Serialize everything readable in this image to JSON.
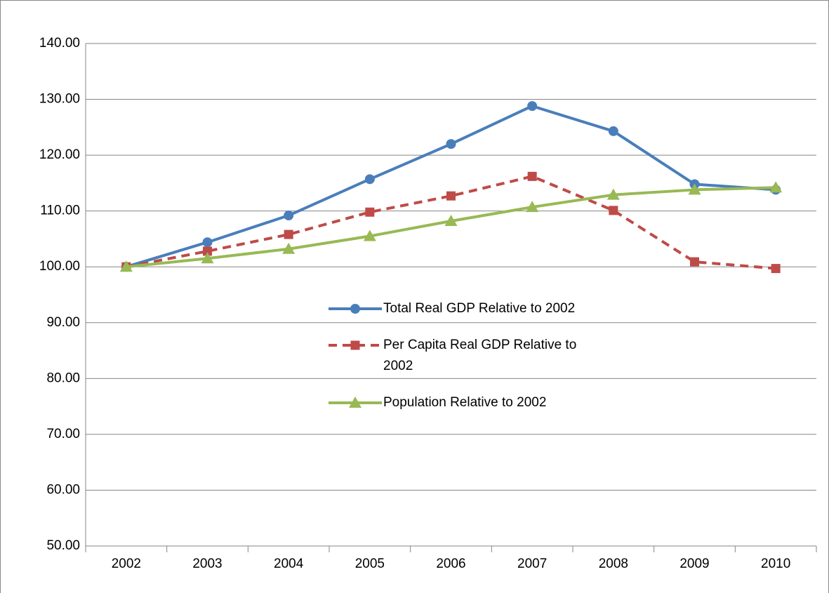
{
  "chart_data": {
    "type": "line",
    "categories": [
      "2002",
      "2003",
      "2004",
      "2005",
      "2006",
      "2007",
      "2008",
      "2009",
      "2010"
    ],
    "series": [
      {
        "name": "Total Real GDP Relative to 2002",
        "color": "#4a7ebb",
        "marker": "circle",
        "dashed": false,
        "values": [
          100,
          104.4,
          109.2,
          115.7,
          122.0,
          128.8,
          124.3,
          114.8,
          113.8
        ]
      },
      {
        "name": "Per Capita Real GDP Relative to 2002",
        "color": "#be4b48",
        "marker": "square",
        "dashed": true,
        "values": [
          100,
          102.8,
          105.8,
          109.8,
          112.7,
          116.2,
          110.1,
          100.9,
          99.7
        ]
      },
      {
        "name": "Population Relative to 2002",
        "color": "#98b954",
        "marker": "triangle",
        "dashed": false,
        "values": [
          100,
          101.5,
          103.2,
          105.5,
          108.2,
          110.7,
          112.9,
          113.8,
          114.2
        ]
      }
    ],
    "ylim": [
      50,
      140
    ],
    "yticks": [
      {
        "value": 50,
        "label": "50.00"
      },
      {
        "value": 60,
        "label": "60.00"
      },
      {
        "value": 70,
        "label": "70.00"
      },
      {
        "value": 80,
        "label": "80.00"
      },
      {
        "value": 90,
        "label": "90.00"
      },
      {
        "value": 100,
        "label": "100.00"
      },
      {
        "value": 110,
        "label": "110.00"
      },
      {
        "value": 120,
        "label": "120.00"
      },
      {
        "value": 130,
        "label": "130.00"
      },
      {
        "value": 140,
        "label": "140.00"
      }
    ],
    "grid": true
  }
}
